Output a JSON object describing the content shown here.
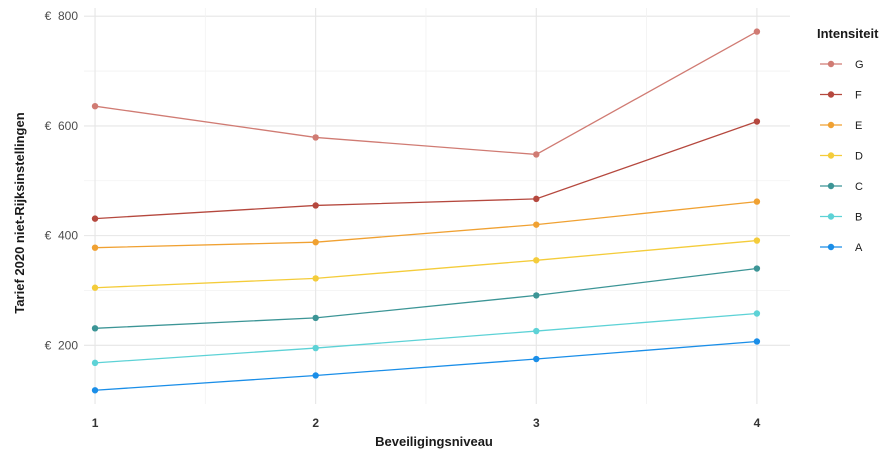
{
  "chart_data": {
    "type": "line",
    "xlabel": "Beveiligingsniveau",
    "ylabel": "Tarief 2020 niet-Rijksinstellingen",
    "x": [
      1,
      2,
      3,
      4
    ],
    "x_ticks": [
      "1",
      "2",
      "3",
      "4"
    ],
    "y_ticks": [
      {
        "value": 200,
        "label": "€  200"
      },
      {
        "value": 400,
        "label": "€  400"
      },
      {
        "value": 600,
        "label": "€  600"
      },
      {
        "value": 800,
        "label": "€  800"
      }
    ],
    "ylim": [
      93,
      815
    ],
    "xlim": [
      0.95,
      4.15
    ],
    "grid": true,
    "legend": {
      "title": "Intensiteit",
      "position": "right"
    },
    "series": [
      {
        "name": "G",
        "color": "#d07b73",
        "values": [
          636,
          579,
          548,
          772
        ]
      },
      {
        "name": "F",
        "color": "#b5483e",
        "values": [
          431,
          455,
          467,
          608
        ]
      },
      {
        "name": "E",
        "color": "#f0a132",
        "values": [
          378,
          388,
          420,
          462
        ]
      },
      {
        "name": "D",
        "color": "#f4cc3a",
        "values": [
          305,
          322,
          355,
          391
        ]
      },
      {
        "name": "C",
        "color": "#3c9596",
        "values": [
          231,
          250,
          291,
          340
        ]
      },
      {
        "name": "B",
        "color": "#5dd2d6",
        "values": [
          168,
          195,
          226,
          258
        ]
      },
      {
        "name": "A",
        "color": "#1a8ee8",
        "values": [
          118,
          145,
          175,
          207
        ]
      }
    ]
  }
}
